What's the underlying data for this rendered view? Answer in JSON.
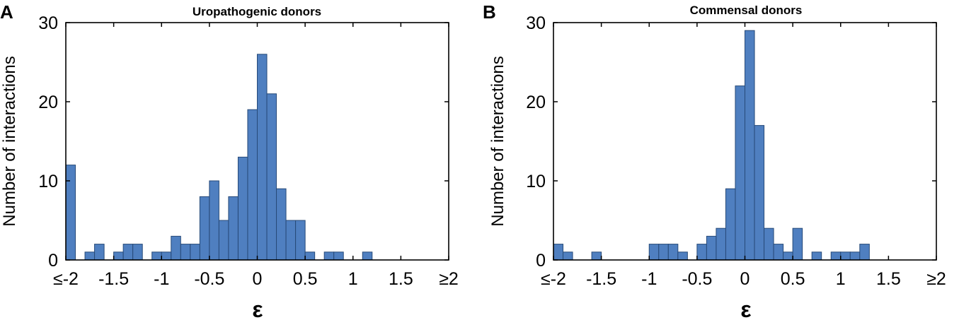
{
  "colors": {
    "bar_fill": "#4f7fc0",
    "bar_edge": "#274a78",
    "axis": "#000000"
  },
  "chart_data": [
    {
      "type": "bar",
      "panel_label": "A",
      "title": "Uropathogenic donors",
      "xlabel": "ε",
      "ylabel": "Number of interactions",
      "xlim": [
        -2,
        2
      ],
      "ylim": [
        0,
        30
      ],
      "xticks": [
        -2,
        -1.5,
        -1,
        -0.5,
        0,
        0.5,
        1,
        1.5,
        2
      ],
      "xtick_labels": [
        "≤-2",
        "-1.5",
        "-1",
        "-0.5",
        "0",
        "0.5",
        "1",
        "1.5",
        "≥2"
      ],
      "yticks": [
        0,
        10,
        20,
        30
      ],
      "ytick_labels": [
        "0",
        "10",
        "20",
        "30"
      ],
      "bin_width": 0.1,
      "x": [
        -2.0,
        -1.8,
        -1.7,
        -1.5,
        -1.4,
        -1.3,
        -1.1,
        -1.0,
        -0.9,
        -0.8,
        -0.7,
        -0.6,
        -0.5,
        -0.4,
        -0.3,
        -0.2,
        -0.1,
        0.0,
        0.1,
        0.2,
        0.3,
        0.4,
        0.5,
        0.7,
        0.8,
        1.1
      ],
      "values": [
        12,
        1,
        2,
        1,
        2,
        2,
        1,
        1,
        3,
        2,
        2,
        8,
        10,
        5,
        8,
        13,
        19,
        26,
        21,
        9,
        5,
        5,
        1,
        1,
        1,
        1
      ]
    },
    {
      "type": "bar",
      "panel_label": "B",
      "title": "Commensal donors",
      "xlabel": "ε",
      "ylabel": "Number of interactions",
      "xlim": [
        -2,
        2
      ],
      "ylim": [
        0,
        30
      ],
      "xticks": [
        -2,
        -1.5,
        -1,
        -0.5,
        0,
        0.5,
        1,
        1.5,
        2
      ],
      "xtick_labels": [
        "≤-2",
        "-1.5",
        "-1",
        "-0.5",
        "0",
        "0.5",
        "1",
        "1.5",
        "≥2"
      ],
      "yticks": [
        0,
        10,
        20,
        30
      ],
      "ytick_labels": [
        "0",
        "10",
        "20",
        "30"
      ],
      "bin_width": 0.1,
      "x": [
        -2.0,
        -1.9,
        -1.6,
        -1.0,
        -0.9,
        -0.8,
        -0.7,
        -0.5,
        -0.4,
        -0.3,
        -0.2,
        -0.1,
        0.0,
        0.1,
        0.2,
        0.3,
        0.4,
        0.5,
        0.7,
        0.9,
        1.0,
        1.1,
        1.2
      ],
      "values": [
        2,
        1,
        1,
        2,
        2,
        2,
        1,
        2,
        3,
        4,
        9,
        22,
        29,
        17,
        4,
        2,
        1,
        4,
        1,
        1,
        1,
        1,
        2
      ]
    }
  ]
}
